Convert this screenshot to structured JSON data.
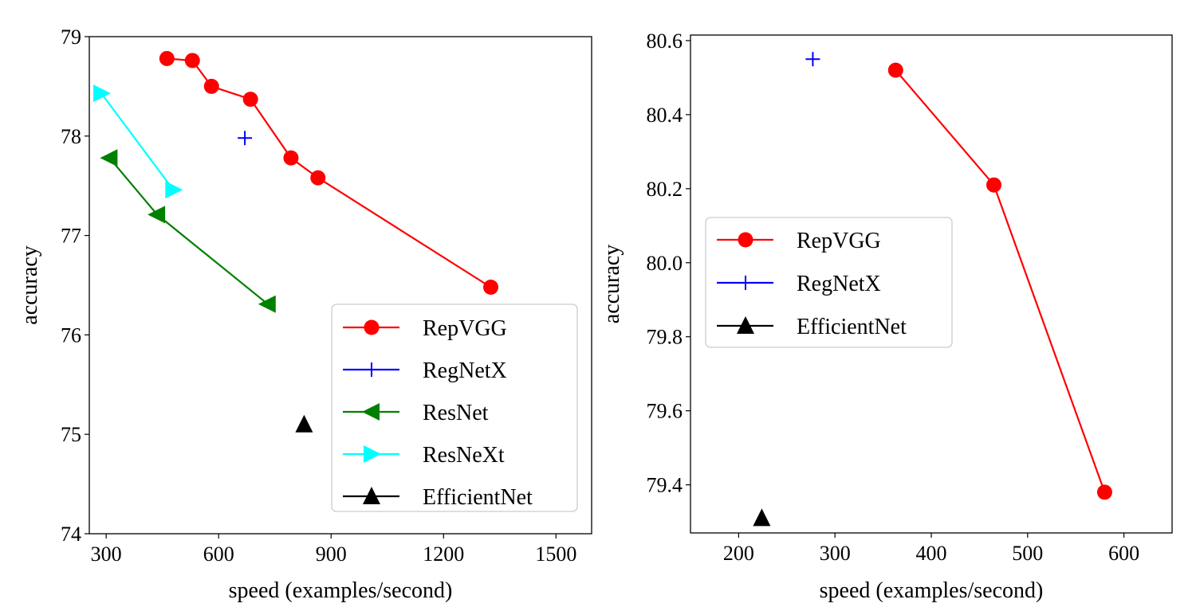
{
  "chart_data": [
    {
      "type": "line",
      "xlabel": "speed (examples/second)",
      "ylabel": "accuracy",
      "xlim": [
        255,
        1595
      ],
      "ylim": [
        74,
        79
      ],
      "xticks": [
        300,
        600,
        900,
        1200,
        1500
      ],
      "yticks": [
        74,
        75,
        76,
        77,
        78,
        79
      ],
      "xtick_labels": [
        "300",
        "600",
        "900",
        "1200",
        "1500"
      ],
      "ytick_labels": [
        "74",
        "75",
        "76",
        "77",
        "78",
        "79"
      ],
      "legend_position": "lower-right",
      "series": [
        {
          "name": "RepVGG",
          "color": "#ff0000",
          "marker": "circle",
          "line": true,
          "x": [
            462,
            530,
            581,
            685,
            793,
            865,
            1326
          ],
          "y": [
            78.78,
            78.76,
            78.5,
            78.37,
            77.78,
            77.58,
            76.48
          ]
        },
        {
          "name": "RegNetX",
          "color": "#0000ff",
          "marker": "plus",
          "line": false,
          "x": [
            670
          ],
          "y": [
            77.98
          ]
        },
        {
          "name": "ResNet",
          "color": "#008000",
          "marker": "triangle-left",
          "line": true,
          "x": [
            309,
            436,
            731
          ],
          "y": [
            77.78,
            77.21,
            76.31
          ]
        },
        {
          "name": "ResNeXt",
          "color": "#00ffff",
          "marker": "triangle-right",
          "line": true,
          "x": [
            287,
            479
          ],
          "y": [
            78.43,
            77.46
          ]
        },
        {
          "name": "EfficientNet",
          "color": "#000000",
          "marker": "triangle-up",
          "line": false,
          "x": [
            828
          ],
          "y": [
            75.1
          ]
        }
      ]
    },
    {
      "type": "line",
      "xlabel": "speed (examples/second)",
      "ylabel": "accuracy",
      "xlim": [
        150,
        650
      ],
      "ylim": [
        79.27,
        80.615
      ],
      "xticks": [
        200,
        300,
        400,
        500,
        600
      ],
      "yticks": [
        79.4,
        79.6,
        79.8,
        80.0,
        80.2,
        80.4,
        80.6
      ],
      "xtick_labels": [
        "200",
        "300",
        "400",
        "500",
        "600"
      ],
      "ytick_labels": [
        "79.4",
        "79.6",
        "79.8",
        "80.0",
        "80.2",
        "80.4",
        "80.6"
      ],
      "legend_position": "center-left",
      "series": [
        {
          "name": "RepVGG",
          "color": "#ff0000",
          "marker": "circle",
          "line": true,
          "x": [
            363,
            465,
            580
          ],
          "y": [
            80.52,
            80.21,
            79.38
          ]
        },
        {
          "name": "RegNetX",
          "color": "#0000ff",
          "marker": "plus",
          "line": false,
          "x": [
            277
          ],
          "y": [
            80.55
          ]
        },
        {
          "name": "EfficientNet",
          "color": "#000000",
          "marker": "triangle-up",
          "line": false,
          "x": [
            224
          ],
          "y": [
            79.31
          ]
        }
      ]
    }
  ]
}
